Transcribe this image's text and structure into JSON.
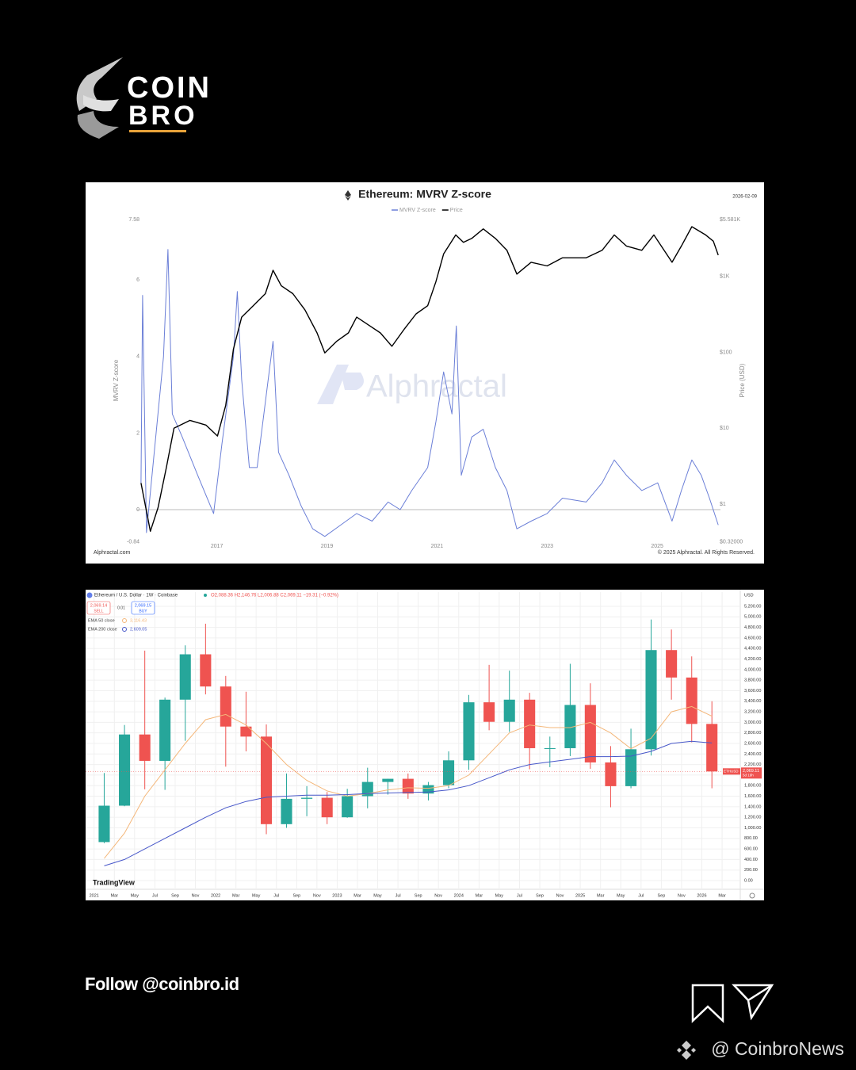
{
  "logo": {
    "line1": "COIN",
    "line2": "BRO"
  },
  "chart_data": [
    {
      "type": "line",
      "title": "Ethereum: MVRV Z-score",
      "date": "2026-02-09",
      "ylabel": "MVRV Z-score",
      "y2label": "Price (USD)",
      "watermark": "Alphractal",
      "source": "Alphractal.com",
      "copyright": "© 2025 Alphractal. All Rights Reserved.",
      "xlim": [
        2015.55,
        2026.15
      ],
      "xticks": [
        2017,
        2019,
        2021,
        2023,
        2025
      ],
      "ylim": [
        -0.84,
        7.58
      ],
      "yticks": [
        -0.84,
        0,
        2,
        4,
        6,
        7.58
      ],
      "y2lim": [
        0.32,
        5581
      ],
      "y2log": true,
      "y2ticks": [
        {
          "value": 0.32,
          "label": "$0.32000"
        },
        {
          "value": 1,
          "label": "$1"
        },
        {
          "value": 10,
          "label": "$10"
        },
        {
          "value": 100,
          "label": "$100"
        },
        {
          "value": 1000,
          "label": "$1K"
        },
        {
          "value": 5581,
          "label": "$5.581K"
        }
      ],
      "zero_line": true,
      "series": [
        {
          "name": "MVRV Z-score",
          "color": "#6b7fd7",
          "x": [
            2015.62,
            2015.65,
            2015.72,
            2016.03,
            2016.11,
            2016.19,
            2016.37,
            2016.65,
            2016.94,
            2017.09,
            2017.3,
            2017.37,
            2017.45,
            2017.59,
            2017.73,
            2017.95,
            2018.02,
            2018.12,
            2018.31,
            2018.53,
            2018.74,
            2018.96,
            2019.25,
            2019.54,
            2019.82,
            2020.11,
            2020.33,
            2020.54,
            2020.83,
            2020.98,
            2021.12,
            2021.27,
            2021.35,
            2021.44,
            2021.63,
            2021.84,
            2022.06,
            2022.27,
            2022.45,
            2022.71,
            2023.0,
            2023.28,
            2023.71,
            2024.0,
            2024.22,
            2024.44,
            2024.72,
            2025.01,
            2025.27,
            2025.44,
            2025.63,
            2025.8,
            2025.95,
            2026.11
          ],
          "values": [
            0.7,
            5.6,
            -0.6,
            4.0,
            6.8,
            2.5,
            1.9,
            0.9,
            -0.1,
            1.7,
            4.0,
            5.7,
            3.4,
            1.1,
            1.1,
            3.6,
            4.4,
            1.5,
            0.9,
            0.1,
            -0.5,
            -0.7,
            -0.4,
            -0.1,
            -0.3,
            0.2,
            0.0,
            0.5,
            1.1,
            2.3,
            3.6,
            2.5,
            4.8,
            0.9,
            1.9,
            2.1,
            1.1,
            0.5,
            -0.5,
            -0.3,
            -0.1,
            0.3,
            0.2,
            0.7,
            1.3,
            0.9,
            0.5,
            0.7,
            -0.3,
            0.5,
            1.3,
            0.9,
            0.3,
            -0.4
          ]
        },
        {
          "name": "Price",
          "color": "#000000",
          "axis": "y2",
          "x": [
            2015.62,
            2015.79,
            2015.93,
            2016.08,
            2016.22,
            2016.51,
            2016.8,
            2017.01,
            2017.16,
            2017.3,
            2017.45,
            2017.66,
            2017.88,
            2018.02,
            2018.17,
            2018.38,
            2018.6,
            2018.82,
            2018.96,
            2019.18,
            2019.39,
            2019.54,
            2019.75,
            2019.97,
            2020.18,
            2020.4,
            2020.62,
            2020.83,
            2020.98,
            2021.12,
            2021.34,
            2021.48,
            2021.63,
            2021.84,
            2022.06,
            2022.27,
            2022.45,
            2022.71,
            2023.0,
            2023.28,
            2023.71,
            2024.0,
            2024.22,
            2024.44,
            2024.72,
            2024.94,
            2025.27,
            2025.44,
            2025.63,
            2025.88,
            2026.02,
            2026.11
          ],
          "values": [
            1.9,
            0.44,
            0.9,
            3,
            10,
            12.7,
            11,
            7.9,
            20,
            110,
            290,
            410,
            590,
            1200,
            750,
            590,
            360,
            180,
            98,
            140,
            180,
            290,
            230,
            180,
            120,
            200,
            320,
            410,
            850,
            1970,
            3500,
            2800,
            3150,
            4200,
            3150,
            2200,
            1070,
            1530,
            1370,
            1750,
            1750,
            2200,
            3500,
            2500,
            2200,
            3500,
            1530,
            2500,
            4500,
            3500,
            2900,
            1900
          ]
        }
      ]
    },
    {
      "type": "candlestick",
      "symbol": "Ethereum / U.S. Dollar · 1W · Coinbase",
      "ohlc_text": "O2,088.36 H2,146.76 L2,006.88 C2,069.11 −19.31 (−0.92%)",
      "sell": {
        "price": "2,069.14",
        "label": "SELL"
      },
      "spread": "0.01",
      "buy": {
        "price": "2,069.15",
        "label": "BUY"
      },
      "currency": "USD",
      "last_price_tag": {
        "symbol": "ETHUSD",
        "price": "2,069.11",
        "countdown": "5d 19h"
      },
      "brand": "TradingView",
      "grid": true,
      "up_color": "#26a69a",
      "down_color": "#ef5350",
      "xlim": [
        2020.93,
        2026.31
      ],
      "xticks": [
        {
          "value": 2021,
          "label": "2021"
        },
        {
          "value": 2021.167,
          "label": "Mar"
        },
        {
          "value": 2021.333,
          "label": "May"
        },
        {
          "value": 2021.5,
          "label": "Jul"
        },
        {
          "value": 2021.667,
          "label": "Sep"
        },
        {
          "value": 2021.833,
          "label": "Nov"
        },
        {
          "value": 2022,
          "label": "2022"
        },
        {
          "value": 2022.167,
          "label": "Mar"
        },
        {
          "value": 2022.333,
          "label": "May"
        },
        {
          "value": 2022.5,
          "label": "Jul"
        },
        {
          "value": 2022.667,
          "label": "Sep"
        },
        {
          "value": 2022.833,
          "label": "Nov"
        },
        {
          "value": 2023,
          "label": "2023"
        },
        {
          "value": 2023.167,
          "label": "Mar"
        },
        {
          "value": 2023.333,
          "label": "May"
        },
        {
          "value": 2023.5,
          "label": "Jul"
        },
        {
          "value": 2023.667,
          "label": "Sep"
        },
        {
          "value": 2023.833,
          "label": "Nov"
        },
        {
          "value": 2024,
          "label": "2024"
        },
        {
          "value": 2024.167,
          "label": "Mar"
        },
        {
          "value": 2024.333,
          "label": "May"
        },
        {
          "value": 2024.5,
          "label": "Jul"
        },
        {
          "value": 2024.667,
          "label": "Sep"
        },
        {
          "value": 2024.833,
          "label": "Nov"
        },
        {
          "value": 2025,
          "label": "2025"
        },
        {
          "value": 2025.167,
          "label": "Mar"
        },
        {
          "value": 2025.333,
          "label": "May"
        },
        {
          "value": 2025.5,
          "label": "Jul"
        },
        {
          "value": 2025.667,
          "label": "Sep"
        },
        {
          "value": 2025.833,
          "label": "Nov"
        },
        {
          "value": 2026,
          "label": "2026"
        },
        {
          "value": 2026.167,
          "label": "Mar"
        }
      ],
      "ylim": [
        -165,
        5470
      ],
      "yticks": [
        {
          "value": 0,
          "label": "0.00"
        },
        {
          "value": 200,
          "label": "200.00"
        },
        {
          "value": 400,
          "label": "400.00"
        },
        {
          "value": 600,
          "label": "600.00"
        },
        {
          "value": 800,
          "label": "800.00"
        },
        {
          "value": 1000,
          "label": "1,000.00"
        },
        {
          "value": 1200,
          "label": "1,200.00"
        },
        {
          "value": 1400,
          "label": "1,400.00"
        },
        {
          "value": 1600,
          "label": "1,600.00"
        },
        {
          "value": 1800,
          "label": "1,800.00"
        },
        {
          "value": 2000,
          "label": "2,000.00"
        },
        {
          "value": 2200,
          "label": "2,200.00"
        },
        {
          "value": 2400,
          "label": "2,400.00"
        },
        {
          "value": 2600,
          "label": "2,600.00"
        },
        {
          "value": 2800,
          "label": "2,800.00"
        },
        {
          "value": 3000,
          "label": "3,000.00"
        },
        {
          "value": 3200,
          "label": "3,200.00"
        },
        {
          "value": 3400,
          "label": "3,400.00"
        },
        {
          "value": 3600,
          "label": "3,600.00"
        },
        {
          "value": 3800,
          "label": "3,800.00"
        },
        {
          "value": 4000,
          "label": "4,000.00"
        },
        {
          "value": 4200,
          "label": "4,200.00"
        },
        {
          "value": 4400,
          "label": "4,400.00"
        },
        {
          "value": 4600,
          "label": "4,600.00"
        },
        {
          "value": 4800,
          "label": "4,800.00"
        },
        {
          "value": 5000,
          "label": "5,000.00"
        },
        {
          "value": 5200,
          "label": "5,200.00"
        }
      ],
      "x": [
        2021.083,
        2021.25,
        2021.417,
        2021.583,
        2021.75,
        2021.917,
        2022.083,
        2022.25,
        2022.417,
        2022.583,
        2022.75,
        2022.917,
        2023.083,
        2023.25,
        2023.417,
        2023.583,
        2023.75,
        2023.917,
        2024.083,
        2024.25,
        2024.417,
        2024.583,
        2024.75,
        2024.917,
        2025.083,
        2025.25,
        2025.417,
        2025.583,
        2025.75,
        2025.917,
        2026.083
      ],
      "open": [
        730,
        1420,
        2770,
        2270,
        3430,
        4290,
        3680,
        2920,
        2730,
        1070,
        1550,
        1570,
        1200,
        1600,
        1870,
        1930,
        1650,
        1810,
        2280,
        3380,
        3010,
        3430,
        2510,
        2510,
        3330,
        2240,
        1790,
        2490,
        4370,
        3850,
        2970
      ],
      "high": [
        2040,
        2950,
        4360,
        3470,
        4460,
        4870,
        3880,
        3580,
        2960,
        2030,
        1790,
        1680,
        1740,
        2140,
        1930,
        2030,
        1870,
        2450,
        3520,
        4090,
        3980,
        3560,
        2730,
        4110,
        3740,
        2550,
        2880,
        4950,
        4760,
        4250,
        3400
      ],
      "low": [
        710,
        1410,
        1730,
        1720,
        2650,
        3530,
        2160,
        2450,
        880,
        1000,
        1220,
        1070,
        1190,
        1370,
        1630,
        1550,
        1520,
        1750,
        2100,
        2850,
        2820,
        2110,
        2150,
        2360,
        2120,
        1390,
        1750,
        2370,
        3430,
        2620,
        1750
      ],
      "close": [
        1420,
        2770,
        2270,
        3430,
        4290,
        3680,
        2920,
        2730,
        1070,
        1550,
        1570,
        1200,
        1600,
        1870,
        1930,
        1650,
        1810,
        2280,
        3380,
        3010,
        3430,
        2510,
        2510,
        3330,
        2240,
        1790,
        2490,
        4370,
        3850,
        2970,
        2069.11
      ],
      "series": [
        {
          "name": "EMA 50 close",
          "legend_value": "3,116.43",
          "color": "#f4b77a",
          "values": [
            420,
            900,
            1600,
            2100,
            2600,
            3050,
            3150,
            2950,
            2600,
            2200,
            1900,
            1700,
            1600,
            1650,
            1720,
            1760,
            1750,
            1800,
            2000,
            2400,
            2800,
            2950,
            2900,
            2900,
            3000,
            2800,
            2500,
            2700,
            3200,
            3300,
            3116.43
          ]
        },
        {
          "name": "EMA 200 close",
          "legend_value": "2,609.05",
          "color": "#4757c9",
          "values": [
            280,
            400,
            600,
            800,
            1000,
            1200,
            1380,
            1500,
            1580,
            1600,
            1620,
            1620,
            1630,
            1650,
            1660,
            1670,
            1680,
            1720,
            1800,
            1950,
            2100,
            2200,
            2250,
            2300,
            2350,
            2350,
            2360,
            2450,
            2600,
            2640,
            2609.05
          ]
        }
      ]
    }
  ],
  "footer": {
    "follow": "Follow @coinbro.id",
    "handle": "@ CoinbroNews"
  }
}
